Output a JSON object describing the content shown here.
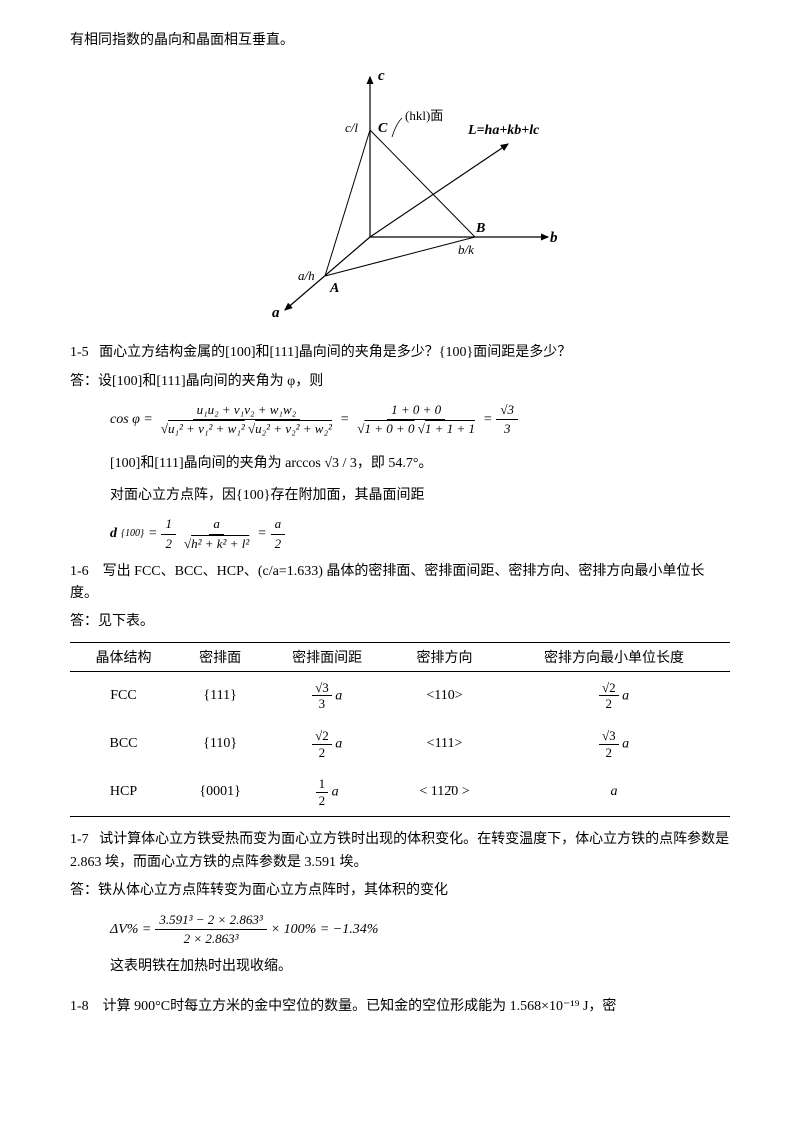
{
  "intro_line": "有相同指数的晶向和晶面相互垂直。",
  "figure": {
    "axis_a": "a",
    "axis_b": "b",
    "axis_c": "c",
    "point_A": "A",
    "point_B": "B",
    "point_C": "C",
    "label_ah": "a/h",
    "label_bk": "b/k",
    "label_cl": "c/l",
    "plane_label": "(hkl)面",
    "vector_label": "L=ha+kb+lc"
  },
  "q15": {
    "number": "1-5",
    "question": "面心立方结构金属的[100]和[111]晶向间的夹角是多少？{100}面间距是多少？",
    "answer_prefix": "答：设[100]和[111]晶向间的夹角为 φ，则",
    "formula_cos": "cos φ =",
    "formula_numerator": "u₁u₂ + v₁v₂ + w₁w₂",
    "formula_denom_left": "u₁² + v₁² + w₁²",
    "formula_denom_right": "u₂² + v₂² + w₂²",
    "formula_step2_num": "1 + 0 + 0",
    "formula_step2_den_left": "1 + 0 + 0",
    "formula_step2_den_right": "1 + 1 + 1",
    "formula_result_num": "√3",
    "formula_result_den": "3",
    "conclusion1": "[100]和[111]晶向间的夹角为 arccos √3 / 3，即 54.7°。",
    "conclusion2": "对面心立方点阵，因{100}存在附加面，其晶面间距",
    "d_formula_label": "d",
    "d_formula_sub": "{100}",
    "d_half": "1",
    "d_half_den": "2",
    "d_a": "a",
    "d_denom": "h² + k² + l²",
    "d_result_num": "a",
    "d_result_den": "2"
  },
  "q16": {
    "number": "1-6",
    "question": "写出 FCC、BCC、HCP、(c/a=1.633) 晶体的密排面、密排面间距、密排方向、密排方向最小单位长度。",
    "answer_prefix": "答：见下表。",
    "headers": [
      "晶体结构",
      "密排面",
      "密排面间距",
      "密排方向",
      "密排方向最小单位长度"
    ],
    "rows": [
      {
        "structure": "FCC",
        "plane": "{111}",
        "spacing_num": "√3",
        "spacing_den": "3",
        "spacing_suffix": "a",
        "direction": "<110>",
        "length_num": "√2",
        "length_den": "2",
        "length_suffix": "a"
      },
      {
        "structure": "BCC",
        "plane": "{110}",
        "spacing_num": "√2",
        "spacing_den": "2",
        "spacing_suffix": "a",
        "direction": "<111>",
        "length_num": "√3",
        "length_den": "2",
        "length_suffix": "a"
      },
      {
        "structure": "HCP",
        "plane": "{0001}",
        "spacing_num": "1",
        "spacing_den": "2",
        "spacing_suffix": "a",
        "direction": "< 112̄0 >",
        "length_plain": "a"
      }
    ]
  },
  "q17": {
    "number": "1-7",
    "question": "试计算体心立方铁受热而变为面心立方铁时出现的体积变化。在转变温度下，体心立方铁的点阵参数是 2.863 埃，而面心立方铁的点阵参数是 3.591 埃。",
    "answer_prefix": "答：铁从体心立方点阵转变为面心立方点阵时，其体积的变化",
    "dv_label": "ΔV% =",
    "dv_num": "3.591³ − 2 × 2.863³",
    "dv_den": "2 × 2.863³",
    "dv_mult": "× 100% = −1.34%",
    "conclusion": "这表明铁在加热时出现收缩。"
  },
  "q18": {
    "number": "1-8",
    "question_part": "计算 900°C时每立方米的金中空位的数量。已知金的空位形成能为 1.568×10⁻¹⁹ J，密"
  }
}
